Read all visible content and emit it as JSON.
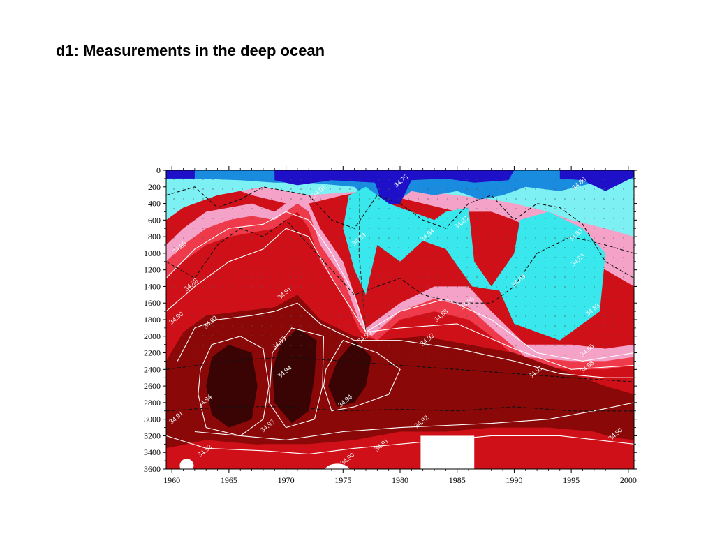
{
  "slide": {
    "title": "d1: Measurements in the deep ocean"
  },
  "chart_data": {
    "type": "heatmap",
    "title": "",
    "xlabel": "",
    "ylabel": "",
    "xlim": [
      1959.5,
      2000.5
    ],
    "ylim": [
      3600,
      0
    ],
    "x_ticks": [
      "1960",
      "1965",
      "1970",
      "1975",
      "1980",
      "1985",
      "1990",
      "1995",
      "2000"
    ],
    "y_ticks": [
      "0",
      "200",
      "400",
      "600",
      "800",
      "1000",
      "1200",
      "1400",
      "1600",
      "1800",
      "2000",
      "2200",
      "2400",
      "2600",
      "2800",
      "3000",
      "3200",
      "3400",
      "3600"
    ],
    "colors": {
      "lowest": "#1e10c8",
      "low": "#1a8ce0",
      "mid_low": "#38e8ec",
      "mid_cyan": "#7cf0f2",
      "mid_pink": "#f4a2c8",
      "mid_high": "#ee3a4a",
      "high": "#d01018",
      "higher": "#8a0808",
      "highest": "#3a0404"
    },
    "contour_labels": [
      {
        "text": "34.75",
        "x": 1980.2,
        "y": 150
      },
      {
        "text": "34.80",
        "x": 1995.8,
        "y": 180
      },
      {
        "text": "34.91",
        "x": 1973.0,
        "y": 270
      },
      {
        "text": "34.86",
        "x": 1960.8,
        "y": 950
      },
      {
        "text": "34.88",
        "x": 1961.8,
        "y": 1400
      },
      {
        "text": "34.90",
        "x": 1960.5,
        "y": 1800
      },
      {
        "text": "34.92",
        "x": 1963.5,
        "y": 1850
      },
      {
        "text": "34.93",
        "x": 1969.5,
        "y": 2100
      },
      {
        "text": "34.94",
        "x": 1970.0,
        "y": 2450
      },
      {
        "text": "34.94",
        "x": 1963.0,
        "y": 2800
      },
      {
        "text": "34.94",
        "x": 1975.3,
        "y": 2800
      },
      {
        "text": "34.91",
        "x": 1970.0,
        "y": 1500
      },
      {
        "text": "34.90",
        "x": 1977.0,
        "y": 2030
      },
      {
        "text": "34.92",
        "x": 1982.5,
        "y": 2060
      },
      {
        "text": "34.88",
        "x": 1983.7,
        "y": 1770
      },
      {
        "text": "34.86",
        "x": 1986.0,
        "y": 1620
      },
      {
        "text": "34.85",
        "x": 1996.5,
        "y": 2190
      },
      {
        "text": "34.88",
        "x": 1996.5,
        "y": 2390
      },
      {
        "text": "34.91",
        "x": 1992.0,
        "y": 2450
      },
      {
        "text": "34.92",
        "x": 1982.0,
        "y": 3050
      },
      {
        "text": "34.91",
        "x": 1978.5,
        "y": 3330
      },
      {
        "text": "34.90",
        "x": 1975.5,
        "y": 3500
      },
      {
        "text": "34.93",
        "x": 1968.5,
        "y": 3100
      },
      {
        "text": "34.92",
        "x": 1963.0,
        "y": 3400
      },
      {
        "text": "34.91",
        "x": 1960.5,
        "y": 3000
      },
      {
        "text": "34.90",
        "x": 1999.0,
        "y": 3200
      },
      {
        "text": "34.83",
        "x": 1976.5,
        "y": 850
      },
      {
        "text": "34.84",
        "x": 1982.5,
        "y": 800
      },
      {
        "text": "34.83",
        "x": 1985.5,
        "y": 650
      },
      {
        "text": "34.83",
        "x": 1995.5,
        "y": 800
      },
      {
        "text": "34.83",
        "x": 1995.7,
        "y": 1100
      },
      {
        "text": "34.83",
        "x": 1990.5,
        "y": 1350
      },
      {
        "text": "34.83",
        "x": 1997.0,
        "y": 1700
      }
    ]
  }
}
